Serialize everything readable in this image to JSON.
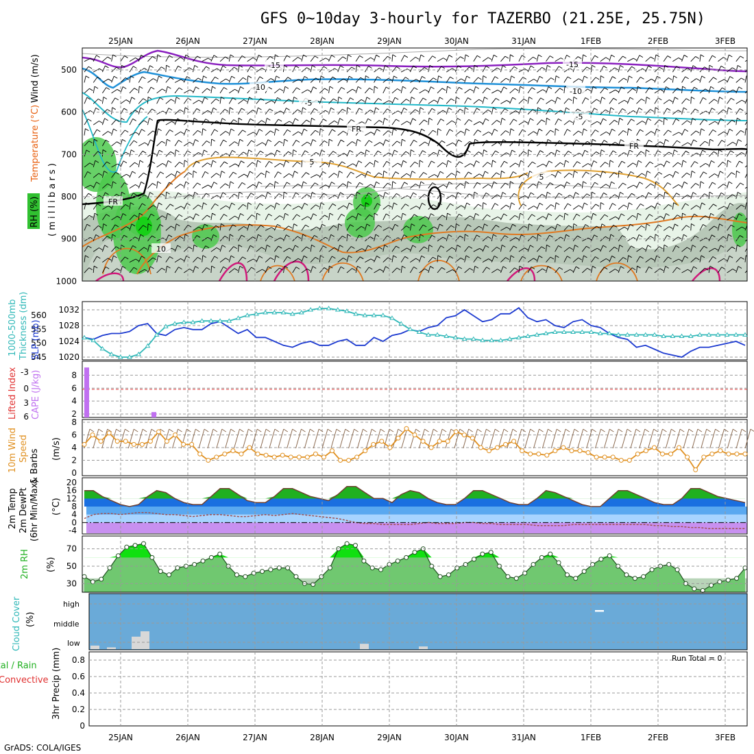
{
  "title": "GFS 0~10day 3-hourly for TAZERBO (21.25E, 25.75N)",
  "footer": "GrADS: COLA/IGES",
  "dates": [
    "25JAN",
    "26JAN",
    "27JAN",
    "28JAN",
    "29JAN",
    "30JAN",
    "31JAN",
    "1FEB",
    "2FEB",
    "3FEB"
  ],
  "colors": {
    "temp_m15": "#8a1fbf",
    "temp_m10": "#1e90d8",
    "temp_m5": "#20b8c8",
    "freezing": "#000000",
    "temp_5": "#e0a030",
    "temp_10": "#e07820",
    "temp_15": "#d0187a",
    "rh_light": "#e8f4e8",
    "rh_mid": "#b8c8b8",
    "rh_green": "#4cc94c",
    "slp": "#1c3ad0",
    "thickness": "#30b8b8",
    "cape": "#c070f0",
    "wind_speed": "#e09020",
    "barb": "#8b6a50",
    "temp_max_fill": "#20b020",
    "temp_blue_dark": "#1a6fe0",
    "temp_blue_light": "#a8d4ff",
    "temp_purple": "#c890f0",
    "dewpt": "#a05050",
    "rh2m_fill": "#40c040",
    "rh2m_bg": "#b8d4b8",
    "cloud_bg": "#6aaad8",
    "cloud_bar": "#d8d8d8",
    "lifted_axis": "#e03030",
    "precip_label": "#20b020",
    "convective_label": "#e03030"
  },
  "panels": {
    "upper": {
      "ylabel_wind": "Wind (m/s)",
      "ylabel_temp": "Temperature (°C)",
      "ylabel_rh": "RH (%)",
      "ylabel_mb": "( m i l l i b a r s )",
      "yticks": [
        "500",
        "600",
        "700",
        "800",
        "900",
        "1000"
      ],
      "contour_labels": [
        {
          "text": "-15",
          "kind": "temp_m15"
        },
        {
          "text": "-15",
          "kind": "temp_m15"
        },
        {
          "text": "-10",
          "kind": "temp_m10"
        },
        {
          "text": "-10",
          "kind": "temp_m10"
        },
        {
          "text": "-5",
          "kind": "temp_m5"
        },
        {
          "text": "-5",
          "kind": "temp_m5"
        },
        {
          "text": "FR",
          "kind": "freezing"
        },
        {
          "text": "FR",
          "kind": "freezing"
        },
        {
          "text": "FR",
          "kind": "freezing"
        },
        {
          "text": "5",
          "kind": "temp_5"
        },
        {
          "text": "5",
          "kind": "temp_5"
        },
        {
          "text": "10",
          "kind": "temp_10"
        }
      ]
    },
    "thickness": {
      "ylabel_left": "1000-500mb",
      "ylabel_left2": "Thickness (dm)",
      "ylabel_right": "SLP (mb)",
      "left_ticks": [
        "560",
        "555",
        "550",
        "545"
      ],
      "right_ticks": [
        "1032",
        "1028",
        "1024",
        "1020"
      ]
    },
    "cape": {
      "ylabel_left": "Lifted Index",
      "ylabel_right": "CAPE (J/kg)",
      "left_ticks": [
        "-3",
        "0",
        "3",
        "6"
      ],
      "right_ticks": [
        "8",
        "6",
        "4",
        "2"
      ]
    },
    "wind10m": {
      "ylabel1": "10m Wind",
      "ylabel2": "Speed",
      "ylabel3": "& Barbs",
      "ylabel4": "(m/s)",
      "yticks": [
        "8",
        "6",
        "4",
        "2",
        "0"
      ]
    },
    "temp2m": {
      "ylabel1": "2m Temp",
      "ylabel2": "2m DewPt",
      "ylabel3": "(6hr Min/Max)",
      "ylabel4": "(°C)",
      "yticks": [
        "20",
        "16",
        "12",
        "8",
        "4",
        "0",
        "-4"
      ]
    },
    "rh2m": {
      "ylabel": "2m RH",
      "ylabel2": "(%)",
      "yticks": [
        "70",
        "50",
        "30"
      ]
    },
    "cloud": {
      "ylabel1": "Cloud Cover",
      "ylabel2": "(%)",
      "levels": [
        "high",
        "middle",
        "low"
      ]
    },
    "precip": {
      "ylabel1": "3hr Precip (mm)",
      "ylabel_total": "Total / Rain",
      "ylabel_conv": "Convective",
      "yticks": [
        "0.8",
        "0.6",
        "0.4",
        "0.2",
        "0"
      ],
      "run_total": "Run Total = 0"
    }
  },
  "chart_data": [
    {
      "type": "line",
      "name": "panel-slp-thickness",
      "series": [
        {
          "name": "SLP (mb)",
          "values": [
            1025,
            1024.5,
            1025.5,
            1026,
            1026,
            1026.5,
            1028,
            1028.5,
            1026,
            1025.5,
            1027,
            1027.5,
            1027,
            1027,
            1028.5,
            1029,
            1027.5,
            1026,
            1027,
            1025,
            1025,
            1024,
            1023,
            1022.5,
            1023.5,
            1024,
            1023,
            1023,
            1024,
            1024.5,
            1023,
            1023,
            1025,
            1024,
            1025.5,
            1026,
            1027,
            1026.5,
            1027.5,
            1028,
            1030,
            1030.5,
            1032,
            1030.5,
            1029,
            1029.5,
            1031,
            1031,
            1032.5,
            1030,
            1029,
            1029.5,
            1028,
            1027.5,
            1029,
            1029.5,
            1028,
            1027.5,
            1026,
            1025,
            1024.5,
            1022.5,
            1023,
            1022,
            1021,
            1020.5,
            1020,
            1021.5,
            1022.5,
            1022.5,
            1023,
            1023.5,
            1024,
            1023
          ]
        },
        {
          "name": "1000-500mb Thickness (dm)",
          "values": [
            552,
            551,
            548,
            546,
            545,
            545,
            546,
            549,
            553,
            556,
            557,
            557.5,
            557.5,
            558,
            558,
            558,
            558,
            559,
            560,
            560.5,
            561,
            561,
            561,
            560.5,
            561,
            562,
            562.5,
            562.5,
            562,
            561.5,
            560.5,
            560,
            560,
            560,
            559,
            557,
            555,
            554,
            553,
            553,
            552.5,
            552,
            551.5,
            551.5,
            551,
            551,
            551,
            551.5,
            552,
            552.5,
            553,
            553.5,
            554,
            554,
            554,
            554,
            554,
            553.5,
            553.5,
            553,
            553,
            553,
            553,
            553,
            552.5,
            552.5,
            552.5,
            552.5,
            553,
            553,
            553,
            553,
            553,
            553
          ]
        }
      ]
    },
    {
      "type": "bar",
      "name": "panel-cape",
      "series": [
        {
          "name": "CAPE (J/kg)",
          "values": [
            {
              "day": "24JAN 12Z",
              "v": 9.2
            },
            {
              "day": "25JAN 12Z",
              "v": 2.3
            },
            {
              "day": "28JAN 21Z",
              "v": 1.1
            }
          ]
        }
      ],
      "ylim": [
        0,
        9
      ]
    },
    {
      "type": "line",
      "name": "panel-wind10m",
      "series": [
        {
          "name": "10m Wind Speed (m/s)",
          "values": [
            4.5,
            6,
            5,
            6.3,
            5,
            5,
            4.5,
            4.5,
            5,
            6.5,
            5,
            6,
            4.5,
            4.5,
            3,
            2,
            2.5,
            3,
            3.5,
            3,
            4,
            3,
            2.8,
            2.5,
            2.8,
            2.5,
            2.5,
            2.5,
            3,
            2.5,
            3.5,
            2,
            2,
            2.5,
            3.5,
            4.5,
            5,
            4,
            5.5,
            7,
            6,
            5,
            4,
            5,
            5,
            6.5,
            6,
            5.5,
            4,
            3.5,
            4,
            4.5,
            5,
            3.5,
            3,
            3,
            2.8,
            3.5,
            4,
            3.5,
            3.5,
            3.2,
            2.5,
            2.5,
            2.5,
            2,
            2,
            3,
            3.5,
            4,
            3,
            3,
            4,
            2.5,
            0.5,
            2.5,
            3,
            3.5,
            3,
            3,
            3
          ]
        }
      ],
      "ylim": [
        0,
        8
      ]
    },
    {
      "type": "area",
      "name": "panel-temp2m",
      "series": [
        {
          "name": "2m Temp (°C)",
          "values": [
            16,
            16,
            13,
            11,
            9,
            8,
            9,
            13,
            16,
            15,
            12,
            10,
            9,
            9,
            13,
            17,
            17,
            14,
            11,
            10,
            10,
            13,
            17,
            17,
            15,
            13,
            12,
            11,
            14,
            18,
            18,
            15,
            12,
            12,
            10,
            14,
            16,
            15,
            12,
            10,
            9,
            9,
            12,
            16,
            16,
            14,
            12,
            10,
            9,
            9,
            12,
            16,
            15,
            13,
            11,
            9,
            8,
            8,
            12,
            16,
            16,
            14,
            12,
            10,
            9,
            9,
            12,
            17,
            17,
            15,
            13,
            12,
            11,
            10
          ]
        },
        {
          "name": "2m DewPt (°C)",
          "values": [
            2,
            4,
            4.5,
            4.5,
            4,
            4.5,
            5,
            5,
            4.5,
            4,
            4,
            3.5,
            3,
            3.5,
            4,
            4,
            3.5,
            3,
            3,
            3.5,
            4,
            3.5,
            4,
            4.5,
            4,
            3.5,
            3,
            2.5,
            2,
            1,
            0,
            -0.5,
            -0.5,
            -1,
            -1,
            -1,
            -1,
            -0.5,
            0,
            -0.5,
            -0.5,
            -0.5,
            0,
            0,
            -0.5,
            -0.5,
            -1,
            -1,
            -1,
            -1,
            -1.5,
            -1.5,
            -1.5,
            -1.5,
            -1,
            -1,
            -1,
            -1,
            -1,
            -1,
            -1,
            -1,
            -1,
            -1.5,
            -1.5,
            -2,
            -2,
            -2.5,
            -2.5,
            -3,
            -3,
            -3,
            -3,
            -3
          ]
        }
      ],
      "ylim": [
        -6,
        20
      ]
    },
    {
      "type": "area",
      "name": "panel-rh2m",
      "series": [
        {
          "name": "2m RH (%)",
          "values": [
            38,
            32,
            35,
            48,
            62,
            72,
            74,
            76,
            60,
            44,
            40,
            48,
            50,
            52,
            56,
            60,
            64,
            50,
            40,
            38,
            42,
            44,
            46,
            48,
            48,
            38,
            30,
            29,
            38,
            48,
            70,
            76,
            74,
            56,
            48,
            46,
            52,
            56,
            60,
            66,
            70,
            50,
            38,
            40,
            48,
            52,
            58,
            64,
            66,
            50,
            38,
            36,
            42,
            52,
            60,
            64,
            54,
            40,
            36,
            44,
            52,
            58,
            62,
            50,
            40,
            36,
            38,
            46,
            50,
            52,
            46,
            30,
            24,
            22,
            28,
            32,
            34,
            36,
            48
          ]
        }
      ],
      "ylim": [
        20,
        80
      ]
    },
    {
      "type": "bar",
      "name": "panel-cloud",
      "series": [
        {
          "name": "low cloud (%)",
          "values": [
            {
              "day": "24JAN 15Z",
              "v": 20
            },
            {
              "day": "24JAN 21Z",
              "v": 10
            },
            {
              "day": "25JAN 06Z",
              "v": 70
            },
            {
              "day": "25JAN 09Z",
              "v": 100
            },
            {
              "day": "28JAN 18Z",
              "v": 30
            },
            {
              "day": "29JAN 15Z",
              "v": 15
            }
          ]
        },
        {
          "name": "high cloud (%)",
          "values": [
            {
              "day": "1FEB 03Z",
              "v": 10
            }
          ]
        }
      ]
    },
    {
      "type": "bar",
      "name": "panel-precip",
      "values": [],
      "ylim": [
        0,
        0.9
      ]
    }
  ]
}
